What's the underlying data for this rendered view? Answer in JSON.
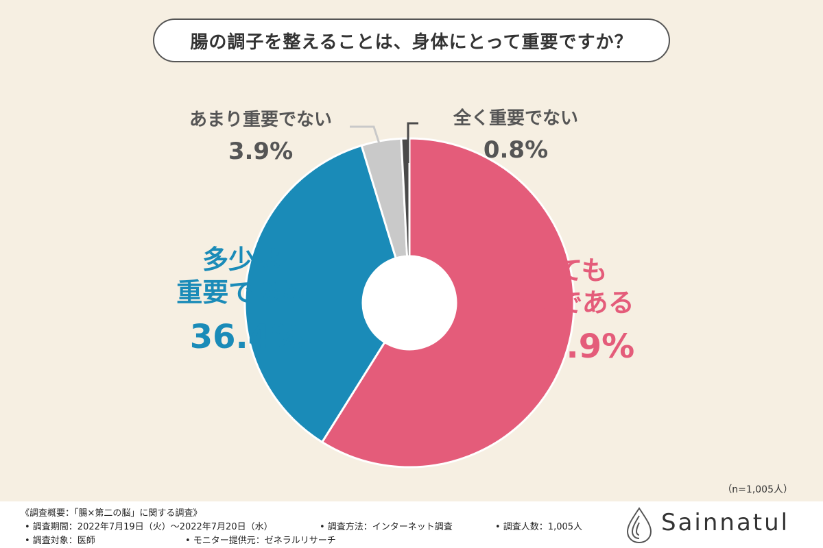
{
  "chart_data": {
    "type": "pie",
    "style": "donut",
    "title": "腸の調子を整えることは、身体にとって重要ですか？",
    "slices": [
      {
        "name": "とても重要である",
        "value": 58.9,
        "value_label": "58.9%",
        "color": "#e45c7a"
      },
      {
        "name": "多少は重要である",
        "value": 36.4,
        "value_label": "36.4%",
        "color": "#1a8bb8"
      },
      {
        "name": "あまり重要でない",
        "value": 3.9,
        "value_label": "3.9%",
        "color": "#c9c9c9"
      },
      {
        "name": "全く重要でない",
        "value": 0.8,
        "value_label": "0.8%",
        "color": "#4a4a4a"
      }
    ],
    "sample_note": "（n=1,005人）"
  },
  "footer": {
    "line1": "《調査概要：「腸×第二の脳」に関する調査》",
    "period": "• 調査期間：2022年7月19日（火）〜2022年7月20日（水）",
    "method": "• 調査方法：インターネット調査",
    "count": "• 調査人数：1,005人",
    "target": "• 調査対象：医師",
    "provider": "• モニター提供元：ゼネラルリサーチ"
  },
  "brand": {
    "name": "Sainnatul",
    "logo_icon": "water-drop-icon"
  },
  "colors": {
    "background": "#f6efe2",
    "text_dark": "#333333",
    "pink": "#e45c7a",
    "blue": "#1a8bb8"
  }
}
